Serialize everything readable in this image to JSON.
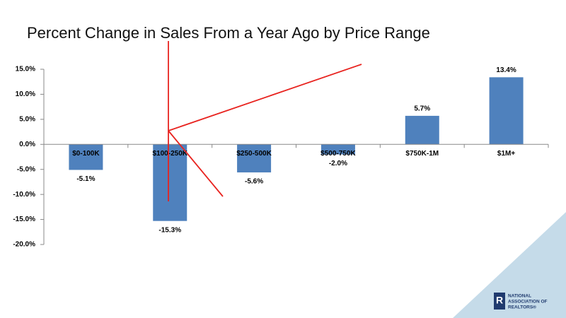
{
  "chart_data": {
    "type": "bar",
    "title": "Percent Change in Sales From a Year Ago by Price Range",
    "categories": [
      "$0-100K",
      "$100-250K",
      "$250-500K",
      "$500-750K",
      "$750K-1M",
      "$1M+"
    ],
    "values": [
      -5.1,
      -15.3,
      -5.6,
      -2.0,
      5.7,
      13.4
    ],
    "value_labels": [
      "-5.1%",
      "-15.3%",
      "-5.6%",
      "-2.0%",
      "5.7%",
      "13.4%"
    ],
    "color": "#4f81bd",
    "ylim": [
      -20,
      15
    ],
    "yticks": [
      {
        "value": -20,
        "label": "-20.0%"
      },
      {
        "value": -15,
        "label": "-15.0%"
      },
      {
        "value": -10,
        "label": "-10.0%"
      },
      {
        "value": -5,
        "label": "-5.0%"
      },
      {
        "value": 0,
        "label": "0.0%"
      },
      {
        "value": 5,
        "label": "5.0%"
      },
      {
        "value": 10,
        "label": "10.0%"
      },
      {
        "value": 15,
        "label": "15.0%"
      }
    ],
    "grid": false
  },
  "logo": [
    "NATIONAL",
    "ASSOCIATION OF",
    "REALTORS®"
  ]
}
